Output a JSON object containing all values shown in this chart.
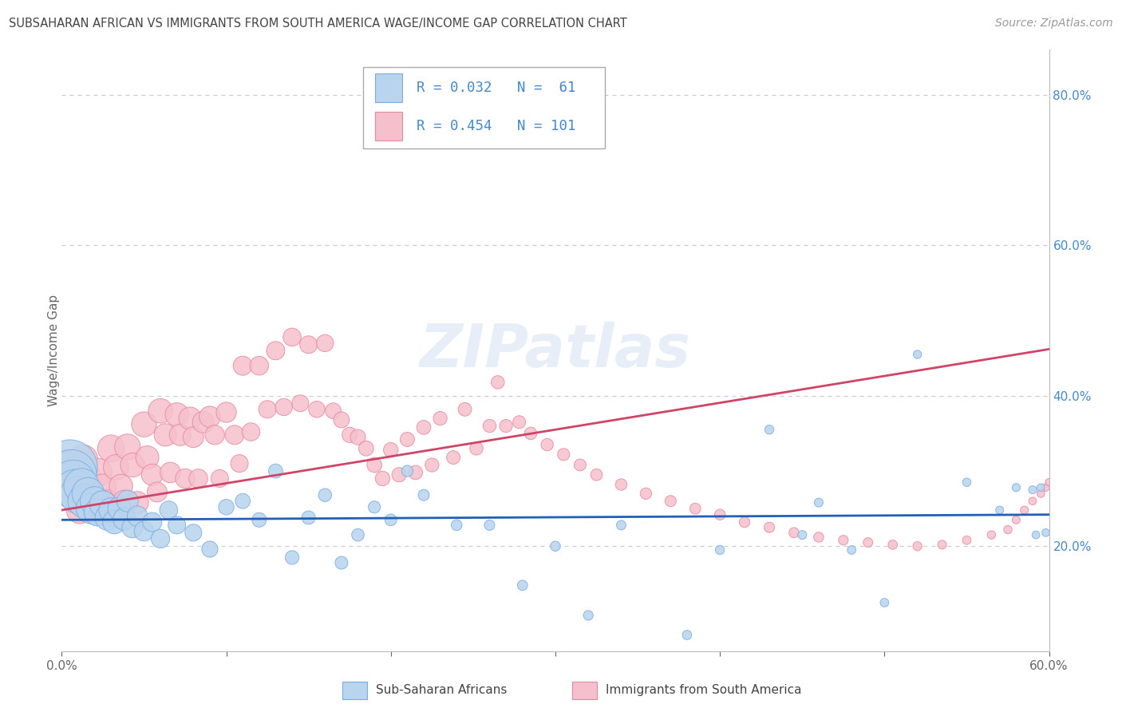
{
  "title": "SUBSAHARAN AFRICAN VS IMMIGRANTS FROM SOUTH AMERICA WAGE/INCOME GAP CORRELATION CHART",
  "source": "Source: ZipAtlas.com",
  "ylabel": "Wage/Income Gap",
  "xlim": [
    0.0,
    0.6
  ],
  "ylim": [
    0.06,
    0.86
  ],
  "xticks": [
    0.0,
    0.1,
    0.2,
    0.3,
    0.4,
    0.5,
    0.6
  ],
  "xticklabels": [
    "0.0%",
    "",
    "",
    "",
    "",
    "",
    "60.0%"
  ],
  "yticks_right": [
    0.2,
    0.4,
    0.6,
    0.8
  ],
  "yticks_right_labels": [
    "20.0%",
    "40.0%",
    "60.0%",
    "80.0%"
  ],
  "blue_R": 0.032,
  "blue_N": 61,
  "pink_R": 0.454,
  "pink_N": 101,
  "blue_fill_color": "#b8d4ee",
  "pink_fill_color": "#f5c0cc",
  "blue_edge_color": "#7aace0",
  "pink_edge_color": "#e888a0",
  "blue_line_color": "#2060b8",
  "pink_line_color": "#d04468",
  "label_color": "#4488cc",
  "legend_label_blue": "Sub-Saharan Africans",
  "legend_label_pink": "Immigrants from South America",
  "watermark": "ZIPatlas",
  "background_color": "#ffffff",
  "grid_color": "#cccccc",
  "title_color": "#444444",
  "blue_trend": [
    0.235,
    0.242
  ],
  "pink_trend": [
    0.248,
    0.462
  ],
  "blue_x": [
    0.005,
    0.006,
    0.007,
    0.008,
    0.01,
    0.012,
    0.014,
    0.016,
    0.018,
    0.02,
    0.022,
    0.025,
    0.028,
    0.03,
    0.032,
    0.035,
    0.038,
    0.04,
    0.043,
    0.046,
    0.05,
    0.055,
    0.06,
    0.065,
    0.07,
    0.08,
    0.09,
    0.1,
    0.11,
    0.12,
    0.13,
    0.14,
    0.15,
    0.16,
    0.17,
    0.18,
    0.19,
    0.2,
    0.21,
    0.22,
    0.24,
    0.26,
    0.28,
    0.3,
    0.32,
    0.34,
    0.38,
    0.4,
    0.43,
    0.45,
    0.46,
    0.48,
    0.5,
    0.52,
    0.55,
    0.57,
    0.58,
    0.59,
    0.592,
    0.595,
    0.598
  ],
  "blue_y": [
    0.305,
    0.295,
    0.285,
    0.275,
    0.268,
    0.28,
    0.26,
    0.27,
    0.25,
    0.26,
    0.245,
    0.256,
    0.238,
    0.248,
    0.232,
    0.25,
    0.236,
    0.26,
    0.225,
    0.24,
    0.22,
    0.232,
    0.21,
    0.248,
    0.228,
    0.218,
    0.196,
    0.252,
    0.26,
    0.235,
    0.3,
    0.185,
    0.238,
    0.268,
    0.178,
    0.215,
    0.252,
    0.235,
    0.3,
    0.268,
    0.228,
    0.228,
    0.148,
    0.2,
    0.108,
    0.228,
    0.082,
    0.195,
    0.355,
    0.215,
    0.258,
    0.195,
    0.125,
    0.455,
    0.285,
    0.248,
    0.278,
    0.275,
    0.215,
    0.278,
    0.218
  ],
  "blue_size": [
    700,
    580,
    460,
    380,
    320,
    290,
    265,
    240,
    215,
    195,
    175,
    165,
    150,
    140,
    128,
    122,
    115,
    108,
    102,
    96,
    90,
    85,
    80,
    76,
    72,
    66,
    60,
    56,
    52,
    48,
    46,
    44,
    42,
    40,
    38,
    36,
    34,
    32,
    30,
    29,
    27,
    25,
    24,
    23,
    22,
    21,
    20,
    19,
    19,
    18,
    18,
    17,
    17,
    16,
    16,
    15,
    15,
    15,
    14,
    14,
    14
  ],
  "pink_x": [
    0.005,
    0.006,
    0.007,
    0.009,
    0.011,
    0.013,
    0.015,
    0.018,
    0.02,
    0.022,
    0.025,
    0.028,
    0.03,
    0.033,
    0.036,
    0.038,
    0.04,
    0.043,
    0.046,
    0.05,
    0.052,
    0.055,
    0.058,
    0.06,
    0.063,
    0.066,
    0.07,
    0.072,
    0.075,
    0.078,
    0.08,
    0.083,
    0.086,
    0.09,
    0.093,
    0.096,
    0.1,
    0.105,
    0.108,
    0.11,
    0.115,
    0.12,
    0.125,
    0.13,
    0.135,
    0.14,
    0.145,
    0.15,
    0.155,
    0.16,
    0.165,
    0.17,
    0.175,
    0.18,
    0.185,
    0.19,
    0.195,
    0.2,
    0.205,
    0.21,
    0.215,
    0.22,
    0.225,
    0.23,
    0.238,
    0.245,
    0.252,
    0.26,
    0.265,
    0.27,
    0.278,
    0.285,
    0.295,
    0.305,
    0.315,
    0.325,
    0.34,
    0.355,
    0.37,
    0.385,
    0.4,
    0.415,
    0.43,
    0.445,
    0.46,
    0.475,
    0.49,
    0.505,
    0.52,
    0.535,
    0.55,
    0.565,
    0.575,
    0.58,
    0.585,
    0.59,
    0.595,
    0.598,
    0.6,
    0.603,
    0.605
  ],
  "pink_y": [
    0.305,
    0.295,
    0.28,
    0.265,
    0.248,
    0.315,
    0.292,
    0.27,
    0.25,
    0.298,
    0.278,
    0.258,
    0.33,
    0.305,
    0.28,
    0.26,
    0.332,
    0.308,
    0.258,
    0.362,
    0.318,
    0.295,
    0.272,
    0.38,
    0.348,
    0.298,
    0.375,
    0.348,
    0.29,
    0.37,
    0.345,
    0.29,
    0.365,
    0.372,
    0.348,
    0.29,
    0.378,
    0.348,
    0.31,
    0.44,
    0.352,
    0.44,
    0.382,
    0.46,
    0.385,
    0.478,
    0.39,
    0.468,
    0.382,
    0.47,
    0.38,
    0.368,
    0.348,
    0.345,
    0.33,
    0.308,
    0.29,
    0.328,
    0.295,
    0.342,
    0.298,
    0.358,
    0.308,
    0.37,
    0.318,
    0.382,
    0.33,
    0.36,
    0.418,
    0.36,
    0.365,
    0.35,
    0.335,
    0.322,
    0.308,
    0.295,
    0.282,
    0.27,
    0.26,
    0.25,
    0.242,
    0.232,
    0.225,
    0.218,
    0.212,
    0.208,
    0.205,
    0.202,
    0.2,
    0.202,
    0.208,
    0.215,
    0.222,
    0.235,
    0.248,
    0.26,
    0.27,
    0.278,
    0.285,
    0.292,
    0.298
  ],
  "pink_size": [
    300,
    260,
    220,
    190,
    168,
    205,
    185,
    168,
    150,
    185,
    168,
    148,
    168,
    148,
    128,
    112,
    155,
    135,
    115,
    145,
    125,
    108,
    92,
    138,
    118,
    98,
    128,
    108,
    88,
    118,
    100,
    82,
    108,
    105,
    88,
    72,
    95,
    85,
    72,
    85,
    75,
    82,
    72,
    78,
    68,
    75,
    65,
    72,
    62,
    68,
    58,
    58,
    55,
    55,
    52,
    52,
    50,
    50,
    48,
    48,
    46,
    46,
    44,
    44,
    42,
    42,
    40,
    40,
    40,
    38,
    38,
    36,
    35,
    34,
    33,
    32,
    31,
    30,
    29,
    28,
    27,
    26,
    25,
    24,
    23,
    22,
    21,
    20,
    19,
    18,
    17,
    16,
    16,
    15,
    15,
    14,
    14,
    13,
    13,
    12,
    12
  ]
}
